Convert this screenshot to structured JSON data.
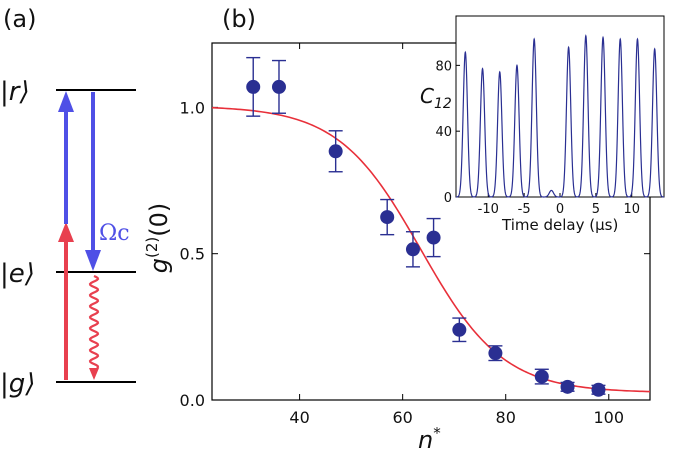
{
  "panel_labels": {
    "a": "(a)",
    "b": "(b)"
  },
  "level_diagram": {
    "levels": [
      "|r⟩",
      "|e⟩",
      "|g⟩"
    ],
    "coupling_label": "Ωc",
    "colors": {
      "probe": "#e8404f",
      "coupling": "#4f50e6",
      "decay": "#e8404f"
    }
  },
  "colors": {
    "points": "#2a2f92",
    "fit": "#e8303a",
    "inset_line": "#2a2f92"
  },
  "chart_data": [
    {
      "type": "scatter",
      "xlabel": "n*",
      "ylabel": "g(2)(0)",
      "xlim": [
        23,
        108
      ],
      "ylim": [
        0.0,
        1.22
      ],
      "xticks": [
        40,
        60,
        80,
        100
      ],
      "yticks": [
        0.0,
        0.5,
        1.0
      ],
      "xtick_labels": [
        "40",
        "60",
        "80",
        "100"
      ],
      "ytick_labels": [
        "0.0",
        "0.5",
        "1.0"
      ],
      "series": [
        {
          "kind": "points_with_errorbars",
          "x": [
            31,
            36,
            47,
            57,
            62,
            66,
            71,
            78,
            87,
            92,
            98
          ],
          "y": [
            1.07,
            1.07,
            0.85,
            0.625,
            0.515,
            0.555,
            0.24,
            0.16,
            0.08,
            0.045,
            0.035
          ],
          "yerr": [
            0.1,
            0.09,
            0.07,
            0.06,
            0.06,
            0.065,
            0.04,
            0.025,
            0.025,
            0.015,
            0.015
          ]
        },
        {
          "kind": "fit_line",
          "function": "sigmoid",
          "params": {
            "a": 0.025,
            "b": 0.98,
            "x0": 63.5,
            "w": 8.0
          }
        }
      ]
    },
    {
      "type": "line",
      "inset": true,
      "xlabel": "Time delay (μs)",
      "ylabel": "C12",
      "xlim": [
        -14.5,
        14.5
      ],
      "ylim": [
        0,
        110
      ],
      "xticks": [
        -10,
        -5,
        0,
        5,
        10
      ],
      "yticks": [
        0,
        40,
        80
      ],
      "xtick_labels": [
        "-10",
        "-5",
        "0",
        "5",
        "10"
      ],
      "ytick_labels": [
        "0",
        "40",
        "80"
      ],
      "peaks": {
        "t": [
          -13.2,
          -10.8,
          -8.4,
          -6.0,
          -3.6,
          -1.2,
          1.2,
          3.6,
          6.0,
          8.4,
          10.8,
          13.2
        ],
        "height": [
          88,
          78,
          76,
          80,
          96,
          4,
          91,
          98,
          97,
          96,
          96,
          90
        ],
        "width": 0.3
      }
    }
  ]
}
